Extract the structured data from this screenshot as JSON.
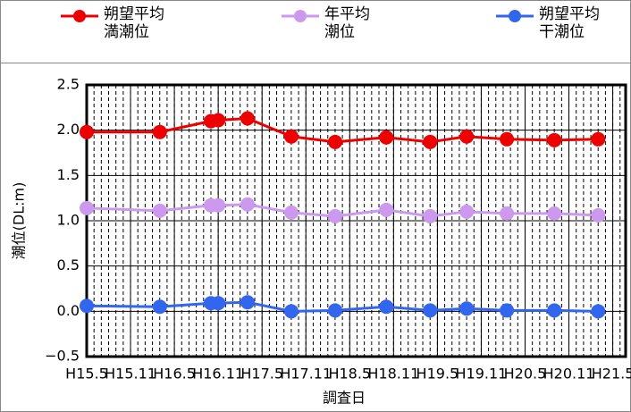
{
  "chart_data": {
    "type": "line",
    "xlabel": "調査日",
    "ylabel": "潮位(DL:m)",
    "x": [
      15.333,
      16.167,
      16.75,
      16.833,
      17.167,
      17.667,
      18.167,
      18.75,
      19.25,
      19.667,
      20.125,
      20.667,
      21.167
    ],
    "series": [
      {
        "name": "朔望平均\n満潮位",
        "color": "#ee0000",
        "values": [
          1.98,
          1.98,
          2.1,
          2.11,
          2.13,
          1.93,
          1.87,
          1.92,
          1.87,
          1.93,
          1.9,
          1.89,
          1.9
        ]
      },
      {
        "name": "年平均\n潮位",
        "color": "#cc99ee",
        "values": [
          1.14,
          1.11,
          1.17,
          1.17,
          1.18,
          1.09,
          1.05,
          1.12,
          1.05,
          1.1,
          1.08,
          1.08,
          1.06
        ]
      },
      {
        "name": "朔望平均\n干潮位",
        "color": "#3366ee",
        "values": [
          0.06,
          0.05,
          0.09,
          0.09,
          0.1,
          0.0,
          0.01,
          0.05,
          0.01,
          0.03,
          0.01,
          0.01,
          0.0
        ]
      }
    ],
    "xlim": [
      15.333,
      21.48
    ],
    "xticks": [
      {
        "value": 15.333,
        "label": "H15.5"
      },
      {
        "value": 15.833,
        "label": "H15.11"
      },
      {
        "value": 16.333,
        "label": "H16.5"
      },
      {
        "value": 16.833,
        "label": "H16.11"
      },
      {
        "value": 17.333,
        "label": "H17.5"
      },
      {
        "value": 17.833,
        "label": "H17.11"
      },
      {
        "value": 18.333,
        "label": "H18.5"
      },
      {
        "value": 18.833,
        "label": "H18.11"
      },
      {
        "value": 19.333,
        "label": "H19.5"
      },
      {
        "value": 19.833,
        "label": "H19.11"
      },
      {
        "value": 20.333,
        "label": "H20.5"
      },
      {
        "value": 20.833,
        "label": "H20.11"
      },
      {
        "value": 21.333,
        "label": "H21.5"
      }
    ],
    "ylim": [
      -0.5,
      2.5
    ],
    "yticks": [
      {
        "value": -0.5,
        "label": "−0.5"
      },
      {
        "value": 0,
        "label": "0.0"
      },
      0.5,
      {
        "value": 1,
        "label": "1.0"
      },
      1.5,
      {
        "value": 2,
        "label": "2.0"
      },
      2.5
    ],
    "grid": true,
    "legend": "top"
  }
}
